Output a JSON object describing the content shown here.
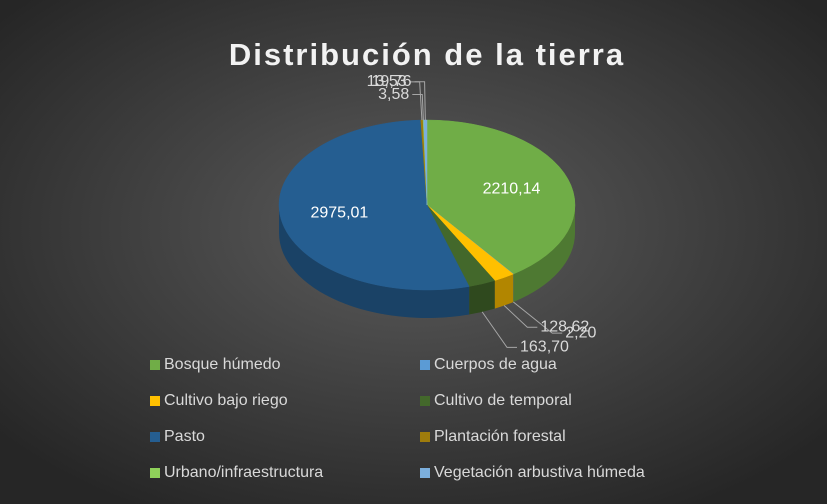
{
  "chart_data": {
    "type": "pie3d",
    "title": "Distribución de la tierra",
    "categories": [
      "Bosque húmedo",
      "Cuerpos de agua",
      "Cultivo bajo riego",
      "Cultivo de temporal",
      "Pasto",
      "Plantación forestal",
      "Urbano/infraestructura",
      "Vegetación arbustiva húmeda"
    ],
    "values": [
      2210.14,
      2.2,
      128.62,
      163.7,
      2975.01,
      13.53,
      3.58,
      19.76
    ],
    "value_labels": [
      "2210,14",
      "2,20",
      "128,62",
      "163,70",
      "2975,01",
      "13,53",
      "3,58",
      "19,76"
    ],
    "colors": [
      "#70ad47",
      "#5b9bd5",
      "#ffc000",
      "#43682b",
      "#255e91",
      "#9e7c0c",
      "#8fd15a",
      "#7cafdd"
    ],
    "legend": "bottom"
  }
}
